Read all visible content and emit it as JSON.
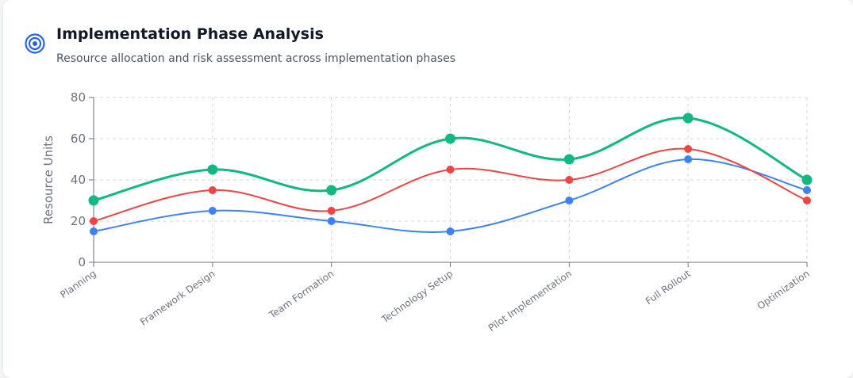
{
  "header": {
    "icon": "target-icon",
    "title": "Implementation Phase Analysis",
    "subtitle": "Resource allocation and risk assessment across implementation phases",
    "accent": "#2563eb"
  },
  "chart_data": {
    "type": "line",
    "categories": [
      "Planning",
      "Framework Design",
      "Team Formation",
      "Technology Setup",
      "Pilot Implementation",
      "Full Rollout",
      "Optimization"
    ],
    "ylabel": "Resource Units",
    "xlabel": "",
    "ylim": [
      0,
      80
    ],
    "yticks": [
      0,
      20,
      40,
      60,
      80
    ],
    "grid": true,
    "legend": "none",
    "series": [
      {
        "color": "#3b82f6",
        "values": [
          15,
          25,
          20,
          15,
          30,
          50,
          35
        ]
      },
      {
        "color": "#ef4444",
        "values": [
          20,
          35,
          25,
          45,
          40,
          55,
          30
        ]
      },
      {
        "color": "#10b981",
        "values": [
          30,
          45,
          35,
          60,
          50,
          70,
          40
        ]
      }
    ]
  }
}
